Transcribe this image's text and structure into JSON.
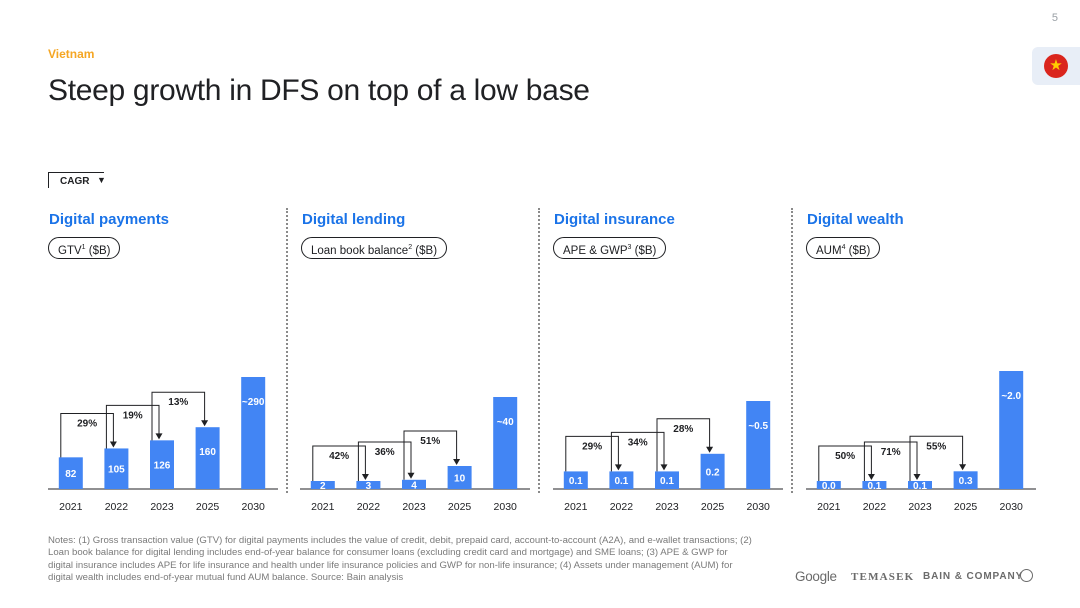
{
  "page_number": "5",
  "flag_icon": "vietnam-flag-icon",
  "kicker": "Vietnam",
  "title": "Steep growth in DFS on top of a low base",
  "cagr_key_label": "CAGR",
  "colors": {
    "bar": "#4285f4",
    "title_blue": "#1a73e8",
    "kicker_orange": "#f5a623"
  },
  "panels": [
    {
      "title": "Digital payments",
      "metric": "GTV",
      "metric_sup": "1",
      "metric_unit": " ($B)"
    },
    {
      "title": "Digital lending",
      "metric": "Loan book balance",
      "metric_sup": "2",
      "metric_unit": " ($B)"
    },
    {
      "title": "Digital insurance",
      "metric": "APE & GWP",
      "metric_sup": "3",
      "metric_unit": " ($B)"
    },
    {
      "title": "Digital wealth",
      "metric": "AUM",
      "metric_sup": "4",
      "metric_unit": " ($B)"
    }
  ],
  "chart_data": [
    {
      "type": "bar",
      "categories": [
        "2021",
        "2022",
        "2023",
        "2025",
        "2030"
      ],
      "values": [
        82,
        105,
        126,
        160,
        290
      ],
      "labels": [
        "82",
        "105",
        "126",
        "160",
        "~290"
      ],
      "cagr": [
        "29%",
        "19%",
        "13%"
      ]
    },
    {
      "type": "bar",
      "categories": [
        "2021",
        "2022",
        "2023",
        "2025",
        "2030"
      ],
      "values": [
        2,
        3,
        4,
        10,
        40
      ],
      "labels": [
        "2",
        "3",
        "4",
        "10",
        "~40"
      ],
      "cagr": [
        "42%",
        "36%",
        "51%"
      ]
    },
    {
      "type": "bar",
      "categories": [
        "2021",
        "2022",
        "2023",
        "2025",
        "2030"
      ],
      "values": [
        0.1,
        0.1,
        0.1,
        0.2,
        0.5
      ],
      "labels": [
        "0.1",
        "0.1",
        "0.1",
        "0.2",
        "~0.5"
      ],
      "cagr": [
        "29%",
        "34%",
        "28%"
      ]
    },
    {
      "type": "bar",
      "categories": [
        "2021",
        "2022",
        "2023",
        "2025",
        "2030"
      ],
      "values": [
        0.0,
        0.1,
        0.1,
        0.3,
        2.0
      ],
      "labels": [
        "0.0",
        "0.1",
        "0.1",
        "0.3",
        "~2.0"
      ],
      "cagr": [
        "50%",
        "71%",
        "55%"
      ]
    }
  ],
  "notes": "Notes: (1) Gross transaction value (GTV) for digital payments includes the value of credit, debit, prepaid card, account-to-account (A2A), and e-wallet transactions; (2) Loan book balance for digital lending includes end-of-year balance for consumer loans (excluding credit card and mortgage) and SME loans; (3) APE & GWP for digital insurance includes APE for life insurance and health under life insurance policies and GWP for non-life insurance; (4) Assets under management (AUM) for digital wealth includes end-of-year mutual fund AUM balance. Source: Bain analysis",
  "logos": {
    "google": "Google",
    "temasek": "TEMASEK",
    "bain": "BAIN & COMPANY"
  }
}
